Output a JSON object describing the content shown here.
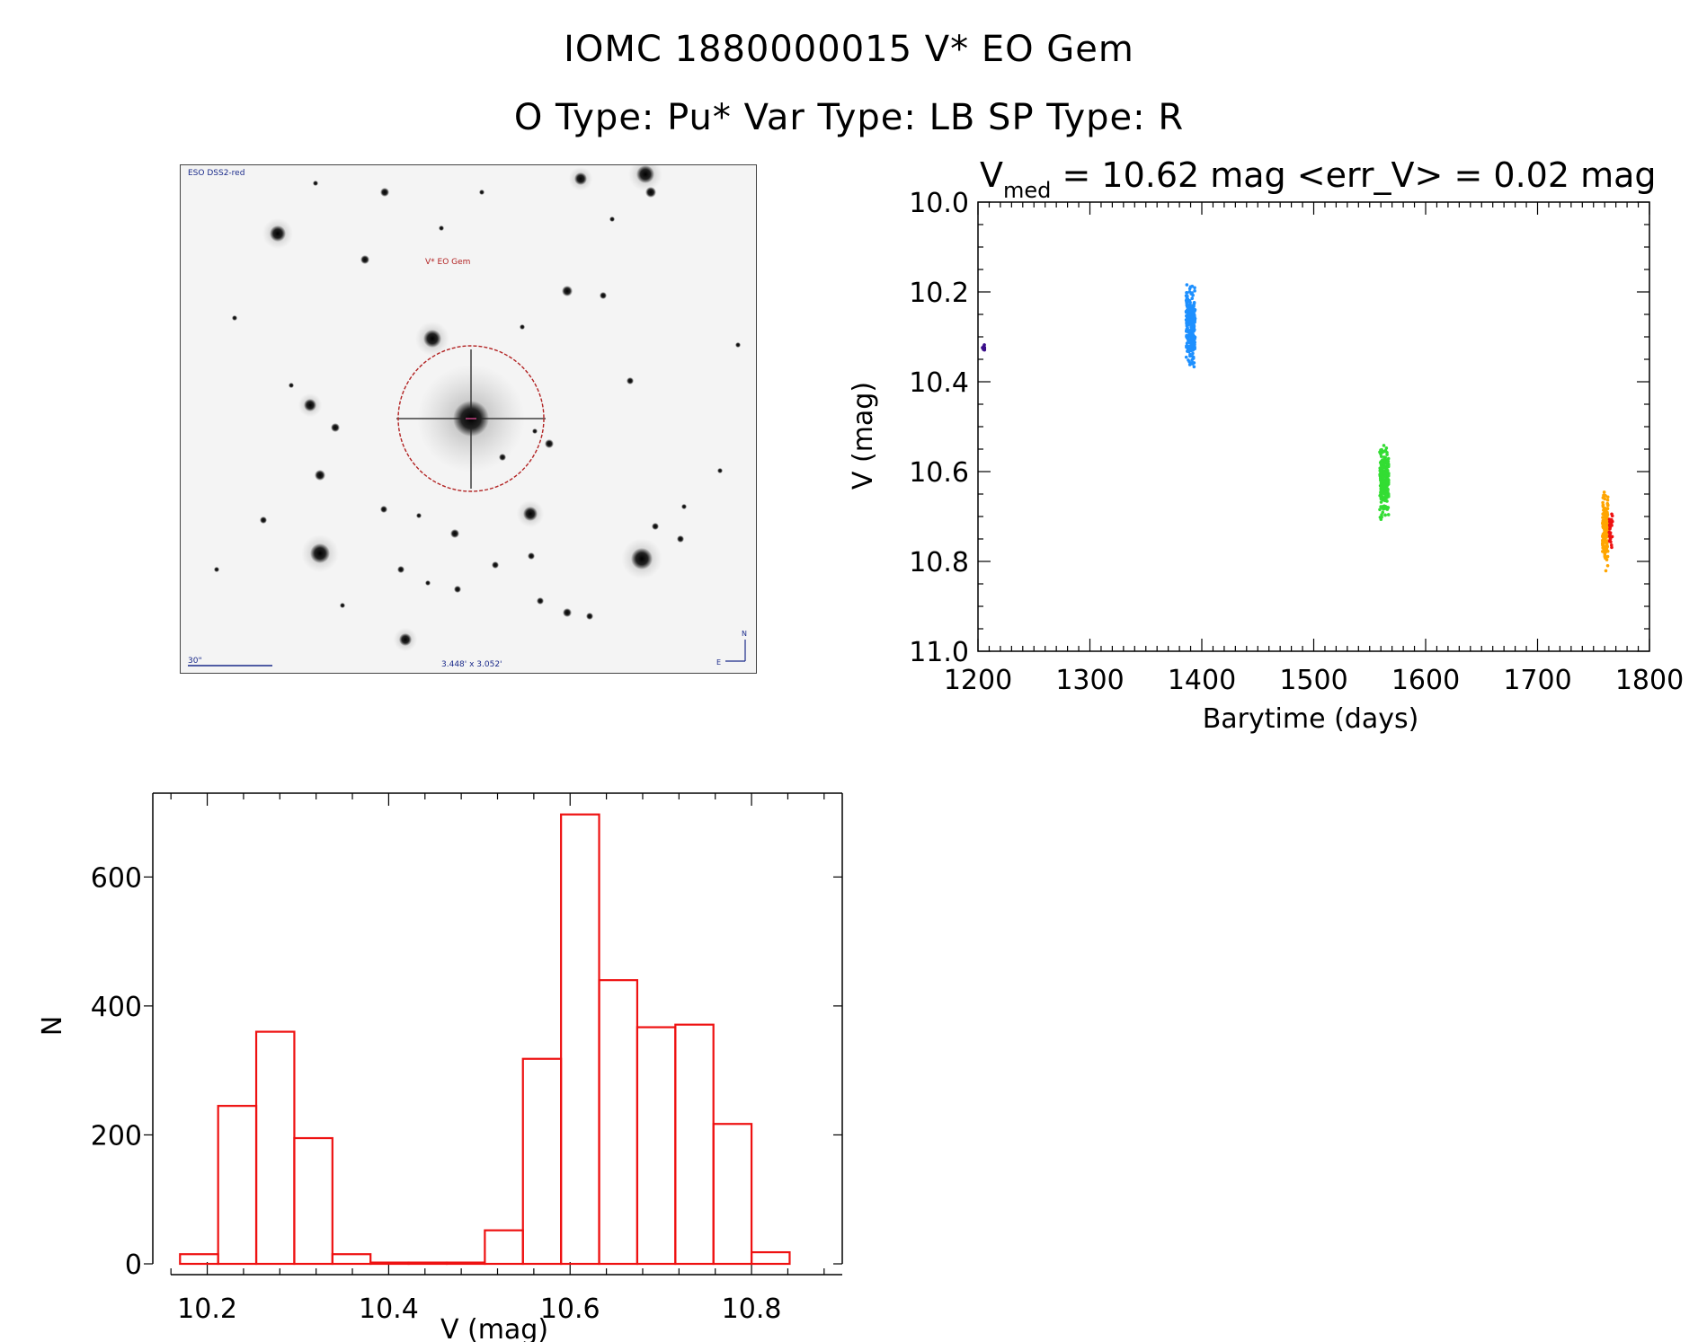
{
  "header": {
    "title_line1": "IOMC 1880000015   V* EO Gem",
    "title_line2": "O Type: Pu*  Var Type: LB  SP Type: R"
  },
  "thumbnail": {
    "survey_label": "ESO DSS2-red",
    "target_label": "V* EO Gem",
    "scale_label": "30\"",
    "fov_label": "3.448' x 3.052'",
    "compass_n": "N",
    "compass_e": "E"
  },
  "lightcurve": {
    "title_prefix": "V",
    "title_subscript": "med",
    "title_rest": " =  10.62 mag <err_V> = 0.02 mag",
    "xlabel": "Barytime (days)",
    "ylabel": "V (mag)"
  },
  "chart_data": [
    {
      "type": "scatter",
      "xlabel": "Barytime (days)",
      "ylabel": "V (mag)",
      "xlim": [
        1200,
        1800
      ],
      "ylim": [
        10.0,
        11.0
      ],
      "y_inverted": true,
      "xticks": [
        1200,
        1300,
        1400,
        1500,
        1600,
        1700,
        1800
      ],
      "yticks": [
        10.0,
        10.2,
        10.4,
        10.6,
        10.8,
        11.0
      ],
      "series": [
        {
          "color": "#3a0e8a",
          "x_range": [
            1204,
            1206
          ],
          "y_range": [
            10.31,
            10.34
          ],
          "points": 12
        },
        {
          "color": "#1e90ff",
          "x_range": [
            1386,
            1394
          ],
          "y_range": [
            10.17,
            10.38
          ],
          "points": 260
        },
        {
          "color": "#33dd33",
          "x_range": [
            1559,
            1567
          ],
          "y_range": [
            10.52,
            10.72
          ],
          "points": 240
        },
        {
          "color": "#ffa500",
          "x_range": [
            1758,
            1763
          ],
          "y_range": [
            10.62,
            10.83
          ],
          "points": 180
        },
        {
          "color": "#ee1111",
          "x_range": [
            1764,
            1767
          ],
          "y_range": [
            10.66,
            10.8
          ],
          "points": 25
        }
      ]
    },
    {
      "type": "bar",
      "xlabel": "V (mag)",
      "ylabel": "N",
      "xlim": [
        10.14,
        10.9
      ],
      "ylim": [
        0,
        730
      ],
      "xticks": [
        10.2,
        10.4,
        10.6,
        10.8
      ],
      "yticks": [
        0,
        200,
        400,
        600
      ],
      "bin_width": 0.042,
      "bin_start": 10.17,
      "color": "#ee1111",
      "values": [
        15,
        245,
        360,
        195,
        15,
        2,
        2,
        2,
        52,
        318,
        697,
        440,
        367,
        371,
        217,
        18
      ]
    }
  ]
}
